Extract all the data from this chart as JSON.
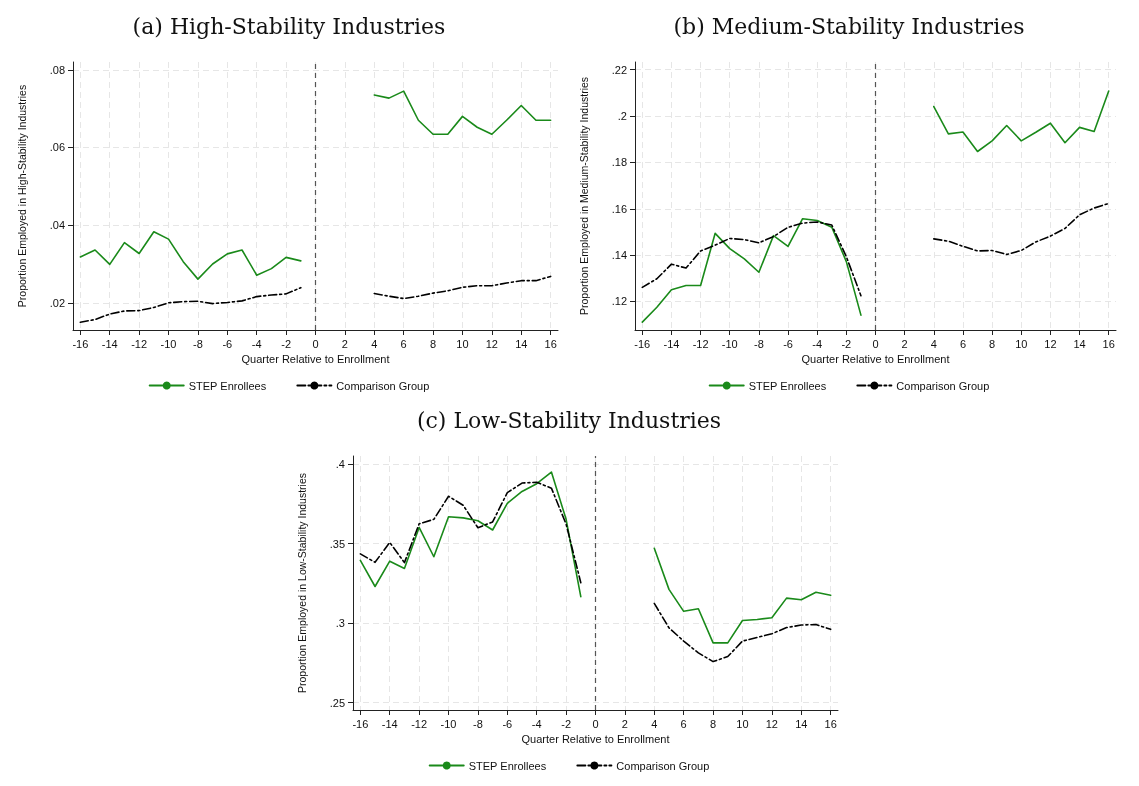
{
  "chart_data": [
    {
      "type": "line",
      "title": "(a) High-Stability Industries",
      "xlabel": "Quarter Relative to Enrollment",
      "ylabel": "Proportion Employed in High-Stability Industries",
      "x": [
        -16,
        -15,
        -14,
        -13,
        -12,
        -11,
        -10,
        -9,
        -8,
        -7,
        -6,
        -5,
        -4,
        -3,
        -2,
        -1,
        0,
        1,
        2,
        3,
        4,
        5,
        6,
        7,
        8,
        9,
        10,
        11,
        12,
        13,
        14,
        15,
        16
      ],
      "series": [
        {
          "name": "STEP Enrollees",
          "color": "#1a8a1a",
          "line_style": "solid",
          "values": [
            0.0318,
            0.0336,
            0.0299,
            0.0355,
            0.0327,
            0.0383,
            0.0364,
            0.0306,
            0.0261,
            0.03,
            0.0326,
            0.0336,
            0.0271,
            0.0288,
            0.0317,
            0.0308,
            null,
            null,
            null,
            null,
            0.0735,
            0.0727,
            0.0745,
            0.067,
            0.0634,
            0.0634,
            0.068,
            0.0652,
            0.0634,
            0.067,
            0.0708,
            0.067,
            0.067
          ]
        },
        {
          "name": "Comparison Group",
          "color": "#000000",
          "line_style": "dashed",
          "values": [
            0.015,
            0.0157,
            0.0171,
            0.0179,
            0.018,
            0.0188,
            0.02,
            0.0203,
            0.0204,
            0.0198,
            0.0201,
            0.0205,
            0.0216,
            0.022,
            0.0223,
            0.0239,
            null,
            null,
            null,
            null,
            0.0224,
            0.0217,
            0.0211,
            0.0217,
            0.0225,
            0.0231,
            0.024,
            0.0244,
            0.0244,
            0.0251,
            0.0257,
            0.0257,
            0.0268
          ]
        }
      ],
      "xlim": [
        -16.5,
        16.5
      ],
      "xticks": [
        -16,
        -14,
        -12,
        -10,
        -8,
        -6,
        -4,
        -2,
        0,
        2,
        4,
        6,
        8,
        10,
        12,
        14,
        16
      ],
      "ylim": [
        0.013,
        0.082
      ],
      "yticks": [
        {
          "value": 0.02,
          "label": ".02"
        },
        {
          "value": 0.04,
          "label": ".04"
        },
        {
          "value": 0.06,
          "label": ".06"
        },
        {
          "value": 0.08,
          "label": ".08"
        }
      ],
      "ref_lines": [
        {
          "axis": "x",
          "value": 0,
          "color": "#555555",
          "line_style": "dashed"
        }
      ],
      "grid": true,
      "legend": "bottom",
      "marker": "none"
    },
    {
      "type": "line",
      "title": "(b) Medium-Stability Industries",
      "xlabel": "Quarter Relative to Enrollment",
      "ylabel": "Proportion Employed in Medium-Stability Industries",
      "x": [
        -16,
        -15,
        -14,
        -13,
        -12,
        -11,
        -10,
        -9,
        -8,
        -7,
        -6,
        -5,
        -4,
        -3,
        -2,
        -1,
        0,
        1,
        2,
        3,
        4,
        5,
        6,
        7,
        8,
        9,
        10,
        11,
        12,
        13,
        14,
        15,
        16
      ],
      "series": [
        {
          "name": "STEP Enrollees",
          "color": "#1a8a1a",
          "line_style": "solid",
          "values": [
            0.1111,
            0.1175,
            0.1251,
            0.1269,
            0.1269,
            0.1494,
            0.1428,
            0.1384,
            0.1326,
            0.1484,
            0.1438,
            0.1557,
            0.1549,
            0.152,
            0.1372,
            0.1141,
            null,
            null,
            null,
            null,
            0.2041,
            0.1923,
            0.1931,
            0.1847,
            0.1893,
            0.1959,
            0.1893,
            0.193,
            0.1969,
            0.1885,
            0.1951,
            0.1933,
            0.2108
          ]
        },
        {
          "name": "Comparison Group",
          "color": "#000000",
          "line_style": "dashed",
          "values": [
            0.1261,
            0.1298,
            0.1361,
            0.1344,
            0.1418,
            0.1443,
            0.1472,
            0.1467,
            0.1453,
            0.148,
            0.152,
            0.1538,
            0.1543,
            0.153,
            0.1393,
            0.1225,
            null,
            null,
            null,
            null,
            0.147,
            0.146,
            0.1438,
            0.1418,
            0.142,
            0.1403,
            0.142,
            0.1457,
            0.1482,
            0.1515,
            0.1574,
            0.1603,
            0.1623
          ]
        }
      ],
      "xlim": [
        -16.5,
        16.5
      ],
      "xticks": [
        -16,
        -14,
        -12,
        -10,
        -8,
        -6,
        -4,
        -2,
        0,
        2,
        4,
        6,
        8,
        10,
        12,
        14,
        16
      ],
      "ylim": [
        0.1077,
        0.2233
      ],
      "yticks": [
        {
          "value": 0.12,
          "label": ".12"
        },
        {
          "value": 0.14,
          "label": ".14"
        },
        {
          "value": 0.16,
          "label": ".16"
        },
        {
          "value": 0.18,
          "label": ".18"
        },
        {
          "value": 0.2,
          "label": ".2"
        },
        {
          "value": 0.22,
          "label": ".22"
        }
      ],
      "ref_lines": [
        {
          "axis": "x",
          "value": 0,
          "color": "#555555",
          "line_style": "dashed"
        }
      ],
      "grid": true,
      "legend": "bottom",
      "marker": "none"
    },
    {
      "type": "line",
      "title": "(c) Low-Stability Industries",
      "xlabel": "Quarter Relative to Enrollment",
      "ylabel": "Proportion Employed in Low-Stability Industries",
      "x": [
        -16,
        -15,
        -14,
        -13,
        -12,
        -11,
        -10,
        -9,
        -8,
        -7,
        -6,
        -5,
        -4,
        -3,
        -2,
        -1,
        0,
        1,
        2,
        3,
        4,
        5,
        6,
        7,
        8,
        9,
        10,
        11,
        12,
        13,
        14,
        15,
        16
      ],
      "series": [
        {
          "name": "STEP Enrollees",
          "color": "#1a8a1a",
          "line_style": "solid",
          "values": [
            0.3394,
            0.323,
            0.3389,
            0.3343,
            0.3601,
            0.3417,
            0.3668,
            0.3661,
            0.3643,
            0.3585,
            0.3753,
            0.3827,
            0.3876,
            0.3949,
            0.3652,
            0.3166,
            null,
            null,
            null,
            null,
            0.347,
            0.3212,
            0.3074,
            0.309,
            0.2876,
            0.2876,
            0.3016,
            0.3023,
            0.3034,
            0.3157,
            0.3147,
            0.3194,
            0.3175
          ]
        },
        {
          "name": "Comparison Group",
          "color": "#000000",
          "line_style": "dashed",
          "values": [
            0.3435,
            0.3382,
            0.3507,
            0.338,
            0.3624,
            0.3652,
            0.3797,
            0.374,
            0.3599,
            0.3636,
            0.382,
            0.388,
            0.3885,
            0.3848,
            0.3622,
            0.3254,
            null,
            null,
            null,
            null,
            0.3124,
            0.297,
            0.2887,
            0.2813,
            0.2758,
            0.279,
            0.2887,
            0.291,
            0.2933,
            0.2972,
            0.2988,
            0.2991,
            0.2961
          ]
        }
      ],
      "xlim": [
        -16.5,
        16.5
      ],
      "xticks": [
        -16,
        -14,
        -12,
        -10,
        -8,
        -6,
        -4,
        -2,
        0,
        2,
        4,
        6,
        8,
        10,
        12,
        14,
        16
      ],
      "ylim": [
        0.2454,
        0.405
      ],
      "yticks": [
        {
          "value": 0.25,
          "label": ".25"
        },
        {
          "value": 0.3,
          "label": ".3"
        },
        {
          "value": 0.35,
          "label": ".35"
        },
        {
          "value": 0.4,
          "label": ".4"
        }
      ],
      "ref_lines": [
        {
          "axis": "x",
          "value": 0,
          "color": "#555555",
          "line_style": "dashed"
        }
      ],
      "grid": true,
      "legend": "bottom",
      "marker": "none"
    }
  ]
}
